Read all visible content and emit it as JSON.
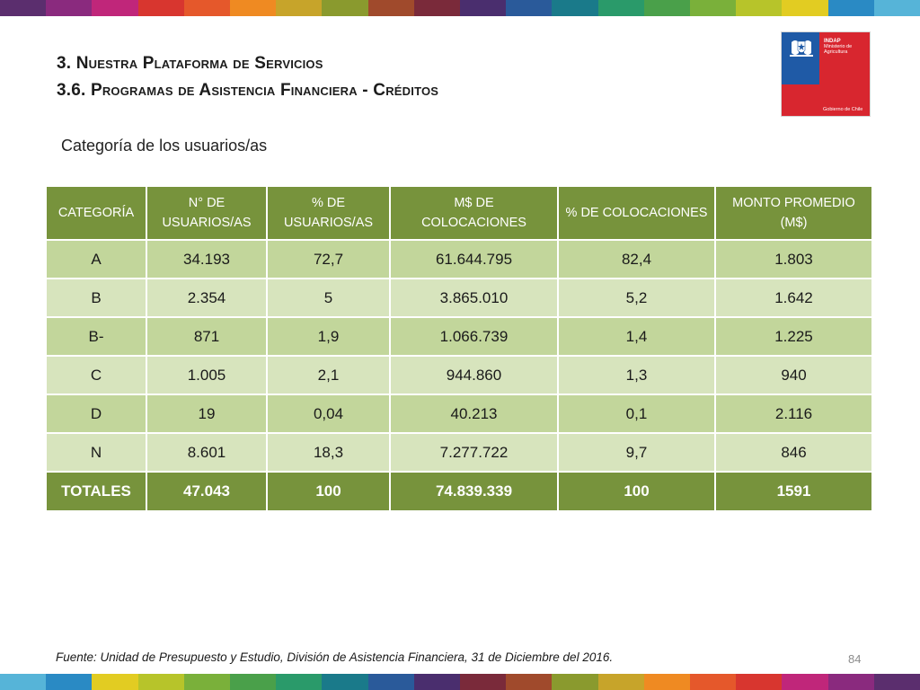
{
  "title": {
    "line1": "3. Nuestra Plataforma de Servicios",
    "line2": "3.6. Programas de Asistencia Financiera - Créditos"
  },
  "logo": {
    "name": "INDAP",
    "ministry_line1": "Ministerio de",
    "ministry_line2": "Agricultura",
    "government": "Gobierno de Chile"
  },
  "subtitle": "Categoría de los usuarios/as",
  "table": {
    "headers": [
      [
        "CATEGORÍA"
      ],
      [
        "N° DE",
        "USUARIOS/AS"
      ],
      [
        "% DE",
        "USUARIOS/AS"
      ],
      [
        "M$ DE",
        "COLOCACIONES"
      ],
      [
        "% DE COLOCACIONES"
      ],
      [
        "MONTO PROMEDIO",
        "(M$)"
      ]
    ],
    "rows": [
      [
        "A",
        "34.193",
        "72,7",
        "61.644.795",
        "82,4",
        "1.803"
      ],
      [
        "B",
        "2.354",
        "5",
        "3.865.010",
        "5,2",
        "1.642"
      ],
      [
        "B-",
        "871",
        "1,9",
        "1.066.739",
        "1,4",
        "1.225"
      ],
      [
        "C",
        "1.005",
        "2,1",
        "944.860",
        "1,3",
        "940"
      ],
      [
        "D",
        "19",
        "0,04",
        "40.213",
        "0,1",
        "2.116"
      ],
      [
        "N",
        "8.601",
        "18,3",
        "7.277.722",
        "9,7",
        "846"
      ]
    ],
    "totals": [
      "TOTALES",
      "47.043",
      "100",
      "74.839.339",
      "100",
      "1591"
    ]
  },
  "footnote": "Fuente: Unidad de Presupuesto y Estudio, División de Asistencia Financiera, 31 de Diciembre del 2016.",
  "page_number": "84",
  "colors": {
    "header_green": "#77933c",
    "row_light": "#d7e4bd",
    "row_dark": "#c2d69b",
    "logo_blue": "#1f5aa6",
    "logo_red": "#d8262f"
  },
  "stripe_colors": [
    "#5b2e6e",
    "#8a2a7e",
    "#c0267a",
    "#d8362f",
    "#e5582b",
    "#ef8a22",
    "#c7a42a",
    "#8a9a2e",
    "#a04a2c",
    "#7a2a3a",
    "#4a2e6e",
    "#2a5a9a",
    "#1a7a8a",
    "#2a9a6a",
    "#4aa04a",
    "#7ab03a",
    "#b7c42a",
    "#e2cc22",
    "#2a8ac4",
    "#56b4d8"
  ]
}
